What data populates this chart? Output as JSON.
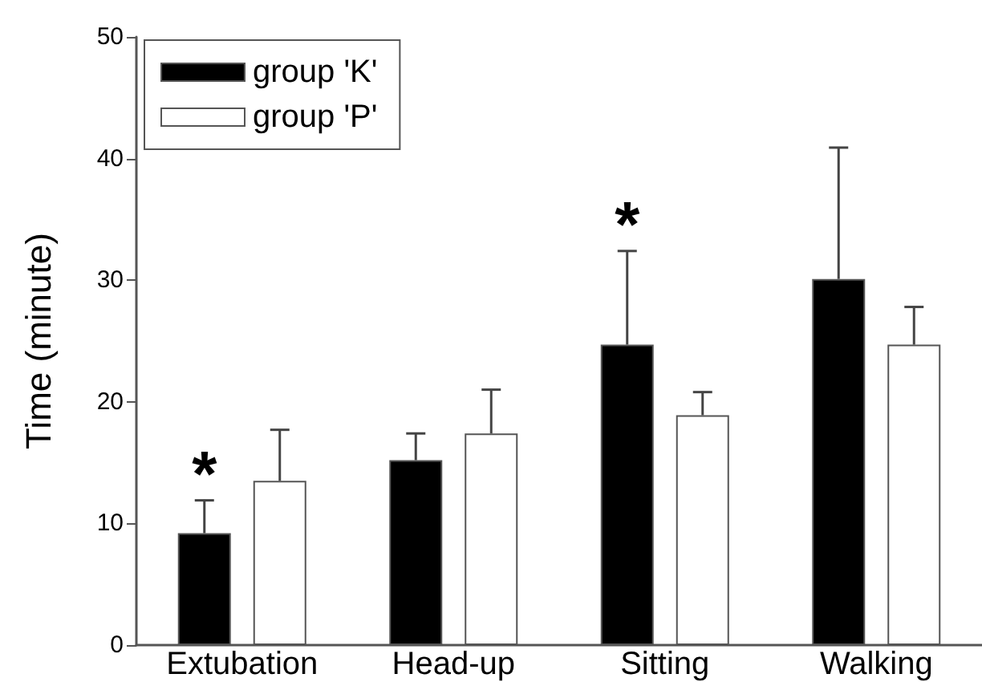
{
  "chart_data": {
    "type": "bar",
    "ylabel": "Time (minute)",
    "categories": [
      "Extubation",
      "Head-up",
      "Sitting",
      "Walking"
    ],
    "series": [
      {
        "name": "group 'K'",
        "color": "#000000",
        "values": [
          9.2,
          15.2,
          24.7,
          30.1
        ],
        "value_labels": [
          "*",
          null,
          "*",
          null
        ],
        "errors": [
          [
            9.2,
            11.9
          ],
          [
            15.2,
            17.4
          ],
          [
            24.7,
            32.4
          ],
          [
            30.1,
            40.9
          ]
        ]
      },
      {
        "name": "group 'P'",
        "color": "#ffffff",
        "values": [
          13.5,
          17.4,
          18.9,
          24.7
        ],
        "errors": [
          [
            13.5,
            17.7
          ],
          [
            17.4,
            21.0
          ],
          [
            18.9,
            20.8
          ],
          [
            24.7,
            27.8
          ]
        ]
      }
    ],
    "ylim": [
      0,
      50
    ],
    "yticks": [
      0,
      10,
      20,
      30,
      40,
      50
    ],
    "grid": false,
    "legend": "top left"
  }
}
